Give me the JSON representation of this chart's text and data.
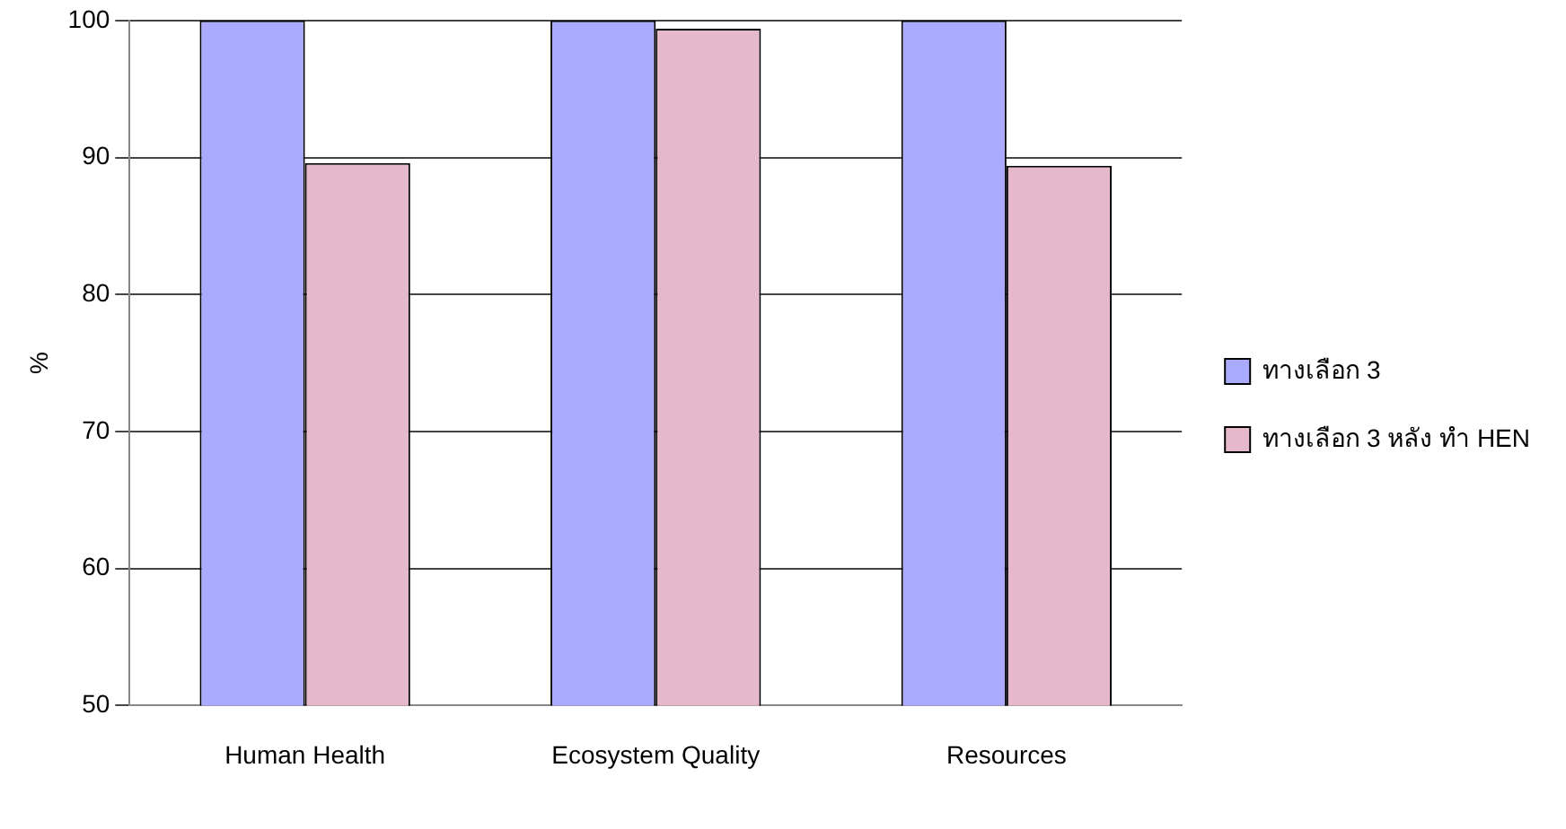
{
  "chart_data": {
    "type": "bar",
    "ylabel": "%",
    "categories": [
      "Human Health",
      "Ecosystem Quality",
      "Resources"
    ],
    "series": [
      {
        "name": "ทางเลือก 3",
        "color": "#aaaaff",
        "values": [
          100,
          100,
          100
        ]
      },
      {
        "name": "ทางเลือก 3 หลัง ทำ HEN",
        "color": "#e6b8cc",
        "values": [
          89.6,
          99.4,
          89.4
        ]
      }
    ],
    "ylim": [
      50,
      100
    ],
    "yticks": [
      50,
      60,
      70,
      80,
      90,
      100
    ],
    "grid": "y",
    "legend": "right"
  }
}
